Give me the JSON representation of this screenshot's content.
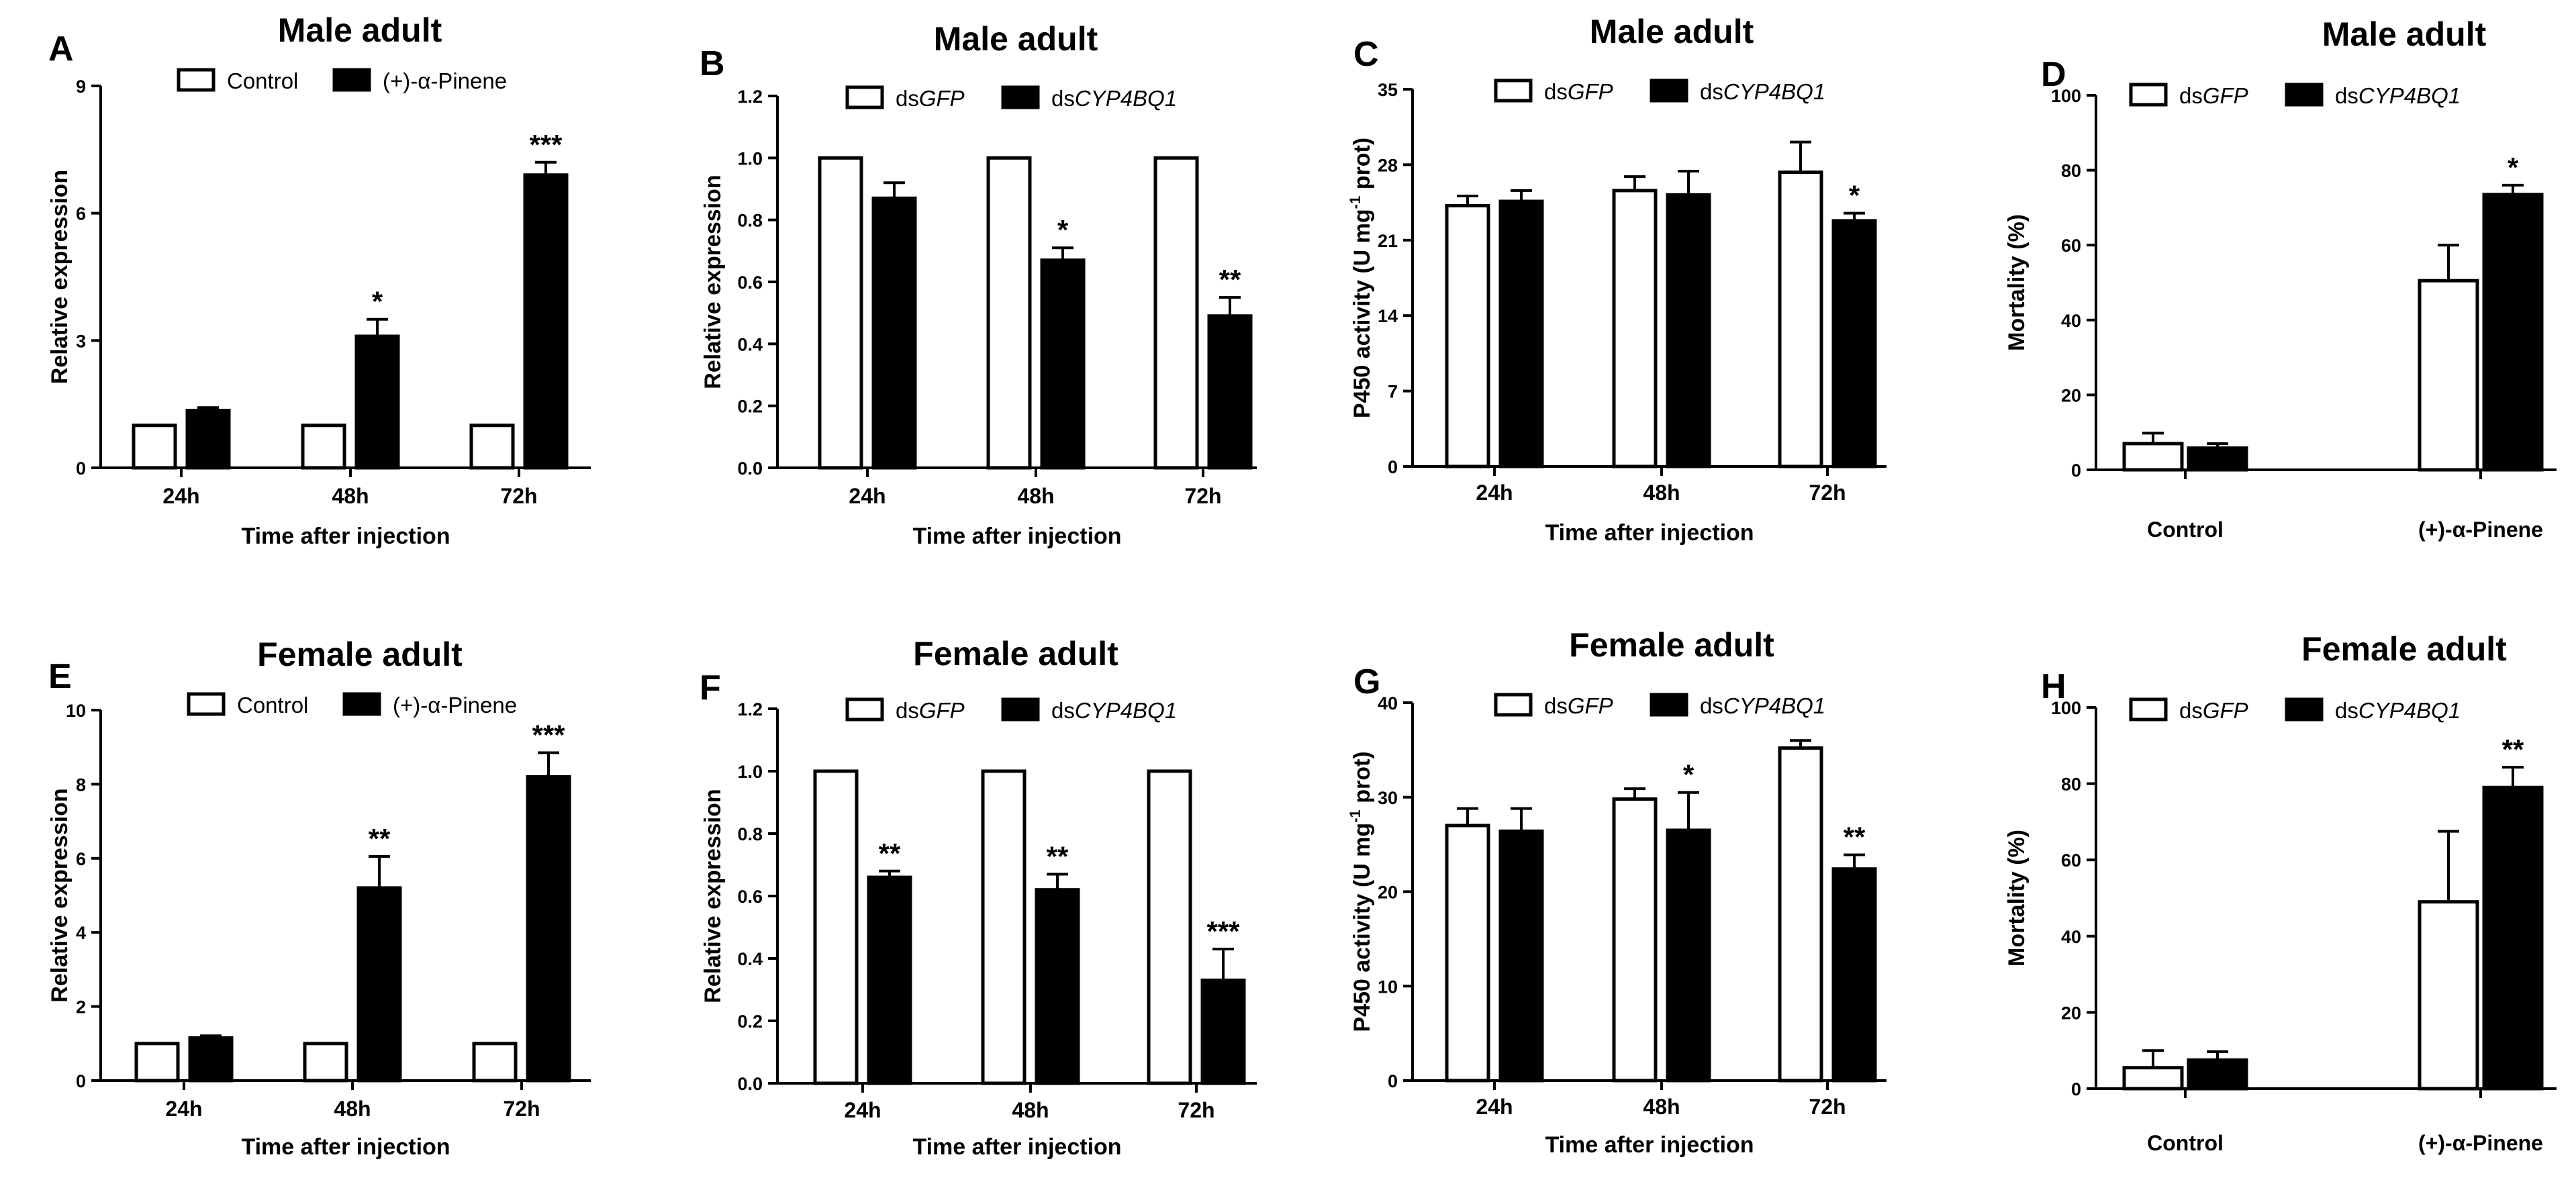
{
  "figure": {
    "panels": [
      {
        "label": "A"
      },
      {
        "label": "B"
      },
      {
        "label": "C"
      },
      {
        "label": "D"
      },
      {
        "label": "E"
      },
      {
        "label": "F"
      },
      {
        "label": "G"
      },
      {
        "label": "H"
      }
    ]
  },
  "chart_data": [
    {
      "type": "bar",
      "panel": "A",
      "title": "Male adult",
      "xlabel": "Time after injection",
      "ylabel": "Relative expression",
      "categories": [
        "24h",
        "48h",
        "72h"
      ],
      "series": [
        {
          "name": "Control",
          "fill": "white",
          "values": [
            1,
            1,
            1
          ],
          "errors": [
            0,
            0,
            0
          ],
          "sig": [
            "",
            "",
            ""
          ]
        },
        {
          "name": "(+)-α-Pinene",
          "fill": "black",
          "values": [
            1.35,
            3.1,
            6.9
          ],
          "errors": [
            0.07,
            0.4,
            0.3
          ],
          "sig": [
            "",
            "*",
            "***"
          ]
        }
      ],
      "ylim": [
        0,
        9
      ],
      "yticks": [
        0,
        3,
        6,
        9
      ],
      "ytick_labels": [
        "0",
        "3",
        "6",
        "9"
      ]
    },
    {
      "type": "bar",
      "panel": "B",
      "title": "Male adult",
      "xlabel": "Time after injection",
      "ylabel": "Relative expression",
      "categories": [
        "24h",
        "48h",
        "72h"
      ],
      "series": [
        {
          "name": "dsGFP",
          "prefix": "ds",
          "italic": "GFP",
          "fill": "white",
          "values": [
            1,
            1,
            1
          ],
          "errors": [
            0,
            0,
            0
          ],
          "sig": [
            "",
            "",
            ""
          ]
        },
        {
          "name": "dsCYP4BQ1",
          "prefix": "ds",
          "italic": "CYP4BQ1",
          "fill": "black",
          "values": [
            0.87,
            0.67,
            0.49
          ],
          "errors": [
            0.05,
            0.04,
            0.06
          ],
          "sig": [
            "",
            "*",
            "**"
          ]
        }
      ],
      "ylim": [
        0,
        1.2
      ],
      "yticks": [
        0,
        0.2,
        0.4,
        0.6,
        0.8,
        1.0,
        1.2
      ],
      "ytick_labels": [
        "0.0",
        "0.2",
        "0.4",
        "0.6",
        "0.8",
        "1.0",
        "1.2"
      ]
    },
    {
      "type": "bar",
      "panel": "C",
      "title": "Male adult",
      "xlabel": "Time after injection",
      "ylabel": "P450  activity (U mg-1 prot)",
      "ylabel_parts": [
        "P450  activity (U mg",
        "-1",
        " prot)"
      ],
      "categories": [
        "24h",
        "48h",
        "72h"
      ],
      "series": [
        {
          "name": "dsGFP",
          "prefix": "ds",
          "italic": "GFP",
          "fill": "white",
          "values": [
            24.2,
            25.6,
            27.3
          ],
          "errors": [
            0.9,
            1.3,
            2.8
          ],
          "sig": [
            "",
            "",
            ""
          ]
        },
        {
          "name": "dsCYP4BQ1",
          "prefix": "ds",
          "italic": "CYP4BQ1",
          "fill": "black",
          "values": [
            24.6,
            25.2,
            22.8
          ],
          "errors": [
            1.0,
            2.2,
            0.7
          ],
          "sig": [
            "",
            "",
            "*"
          ]
        }
      ],
      "ylim": [
        0,
        35
      ],
      "yticks": [
        0,
        7,
        14,
        21,
        28,
        35
      ],
      "ytick_labels": [
        "0",
        "7",
        "14",
        "21",
        "28",
        "35"
      ]
    },
    {
      "type": "bar",
      "panel": "D",
      "title": "Male adult",
      "xlabel": "",
      "ylabel": "Mortality (%)",
      "categories": [
        "Control",
        "(+)-α-Pinene"
      ],
      "series": [
        {
          "name": "dsGFP",
          "prefix": "ds",
          "italic": "GFP",
          "fill": "white",
          "values": [
            7,
            50.5
          ],
          "errors": [
            2.8,
            9.5
          ],
          "sig": [
            "",
            ""
          ]
        },
        {
          "name": "dsCYP4BQ1",
          "prefix": "ds",
          "italic": "CYP4BQ1",
          "fill": "black",
          "values": [
            5.8,
            73.5
          ],
          "errors": [
            1.2,
            2.5
          ],
          "sig": [
            "",
            "*"
          ]
        }
      ],
      "ylim": [
        0,
        100
      ],
      "yticks": [
        0,
        20,
        40,
        60,
        80,
        100
      ],
      "ytick_labels": [
        "0",
        "20",
        "40",
        "60",
        "80",
        "100"
      ]
    },
    {
      "type": "bar",
      "panel": "E",
      "title": "Female adult",
      "xlabel": "Time after injection",
      "ylabel": "Relative expression",
      "categories": [
        "24h",
        "48h",
        "72h"
      ],
      "series": [
        {
          "name": "Control",
          "fill": "white",
          "values": [
            1,
            1,
            1
          ],
          "errors": [
            0,
            0,
            0
          ],
          "sig": [
            "",
            "",
            ""
          ]
        },
        {
          "name": "(+)-α-Pinene",
          "fill": "black",
          "values": [
            1.15,
            5.2,
            8.2
          ],
          "errors": [
            0.06,
            0.85,
            0.65
          ],
          "sig": [
            "",
            "**",
            "***"
          ]
        }
      ],
      "ylim": [
        0,
        10
      ],
      "yticks": [
        0,
        2,
        4,
        6,
        8,
        10
      ],
      "ytick_labels": [
        "0",
        "2",
        "4",
        "6",
        "8",
        "10"
      ]
    },
    {
      "type": "bar",
      "panel": "F",
      "title": "Female adult",
      "xlabel": "Time after injection",
      "ylabel": "Relative expression",
      "categories": [
        "24h",
        "48h",
        "72h"
      ],
      "series": [
        {
          "name": "dsGFP",
          "prefix": "ds",
          "italic": "GFP",
          "fill": "white",
          "values": [
            1,
            1,
            1
          ],
          "errors": [
            0,
            0,
            0
          ],
          "sig": [
            "",
            "",
            ""
          ]
        },
        {
          "name": "dsCYP4BQ1",
          "prefix": "ds",
          "italic": "CYP4BQ1",
          "fill": "black",
          "values": [
            0.66,
            0.62,
            0.33
          ],
          "errors": [
            0.02,
            0.05,
            0.1
          ],
          "sig": [
            "**",
            "**",
            "***"
          ]
        }
      ],
      "ylim": [
        0,
        1.2
      ],
      "yticks": [
        0,
        0.2,
        0.4,
        0.6,
        0.8,
        1.0,
        1.2
      ],
      "ytick_labels": [
        "0.0",
        "0.2",
        "0.4",
        "0.6",
        "0.8",
        "1.0",
        "1.2"
      ]
    },
    {
      "type": "bar",
      "panel": "G",
      "title": "Female adult",
      "xlabel": "Time after injection",
      "ylabel": "P450  activity (U mg-1 prot)",
      "ylabel_parts": [
        "P450  activity (U mg",
        "-1",
        " prot)"
      ],
      "categories": [
        "24h",
        "48h",
        "72h"
      ],
      "series": [
        {
          "name": "dsGFP",
          "prefix": "ds",
          "italic": "GFP",
          "fill": "white",
          "values": [
            27,
            29.8,
            35.2
          ],
          "errors": [
            1.8,
            1.1,
            0.8
          ],
          "sig": [
            "",
            "",
            ""
          ]
        },
        {
          "name": "dsCYP4BQ1",
          "prefix": "ds",
          "italic": "CYP4BQ1",
          "fill": "black",
          "values": [
            26.4,
            26.5,
            22.4
          ],
          "errors": [
            2.4,
            4.0,
            1.5
          ],
          "sig": [
            "",
            "*",
            "**"
          ]
        }
      ],
      "ylim": [
        0,
        40
      ],
      "yticks": [
        0,
        10,
        20,
        30,
        40
      ],
      "ytick_labels": [
        "0",
        "10",
        "20",
        "30",
        "40"
      ]
    },
    {
      "type": "bar",
      "panel": "H",
      "title": "Female adult",
      "xlabel": "",
      "ylabel": "Mortality (%)",
      "categories": [
        "Control",
        "(+)-α-Pinene"
      ],
      "series": [
        {
          "name": "dsGFP",
          "prefix": "ds",
          "italic": "GFP",
          "fill": "white",
          "values": [
            5.5,
            49
          ],
          "errors": [
            4.5,
            18.5
          ],
          "sig": [
            "",
            ""
          ]
        },
        {
          "name": "dsCYP4BQ1",
          "prefix": "ds",
          "italic": "CYP4BQ1",
          "fill": "black",
          "values": [
            7.5,
            79
          ],
          "errors": [
            2.2,
            5.3
          ],
          "sig": [
            "",
            "**"
          ]
        }
      ],
      "ylim": [
        0,
        100
      ],
      "yticks": [
        0,
        20,
        40,
        60,
        80,
        100
      ],
      "ytick_labels": [
        "0",
        "20",
        "40",
        "60",
        "80",
        "100"
      ]
    }
  ]
}
